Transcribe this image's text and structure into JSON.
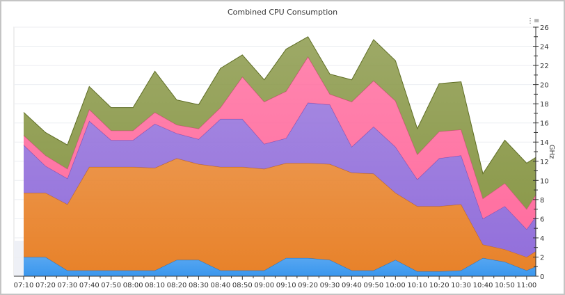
{
  "chart_data": {
    "type": "area",
    "stacked": true,
    "title": "Combined CPU Consumption",
    "ylabel": "GHz",
    "y_axis_side": "right",
    "ylim": [
      0,
      26
    ],
    "y_ticks": [
      0,
      2,
      4,
      6,
      8,
      10,
      12,
      14,
      16,
      18,
      20,
      22,
      24,
      26
    ],
    "grid": true,
    "legend": "none",
    "categories": [
      "07:10",
      "07:20",
      "07:30",
      "07:40",
      "07:50",
      "08:00",
      "08:10",
      "08:20",
      "08:30",
      "08:40",
      "08:50",
      "09:00",
      "09:10",
      "09:20",
      "09:30",
      "09:40",
      "09:50",
      "10:00",
      "10:10",
      "10:20",
      "10:30",
      "10:40",
      "10:50",
      "11:00",
      ""
    ],
    "series": [
      {
        "color": "#3a97ee",
        "line": "#1f6fc2",
        "values": [
          2,
          2,
          0.6,
          0.6,
          0.6,
          0.6,
          0.6,
          1.7,
          1.7,
          0.6,
          0.6,
          0.6,
          1.9,
          1.9,
          1.7,
          0.6,
          0.6,
          1.7,
          0.5,
          0.5,
          0.6,
          1.9,
          1.5,
          0.6,
          1.0
        ]
      },
      {
        "color": "#e8822a",
        "line": "#c0661a",
        "values": [
          6.7,
          6.7,
          6.9,
          10.8,
          10.8,
          10.8,
          10.7,
          10.6,
          10.0,
          10.8,
          10.8,
          10.6,
          9.9,
          9.9,
          10.0,
          10.2,
          10.1,
          7.0,
          6.8,
          6.8,
          6.9,
          1.4,
          1.3,
          1.4,
          1.6
        ]
      },
      {
        "color": "#9370db",
        "line": "#7050b8",
        "values": [
          5.0,
          2.8,
          2.7,
          4.8,
          2.8,
          2.8,
          4.6,
          2.6,
          2.6,
          5.0,
          5.0,
          2.6,
          2.6,
          6.3,
          6.2,
          2.7,
          4.9,
          4.8,
          2.8,
          5.0,
          5.1,
          2.7,
          4.5,
          2.9,
          3.6
        ]
      },
      {
        "color": "#ff6fa0",
        "line": "#d84a80",
        "values": [
          1.0,
          1.1,
          1.0,
          1.2,
          1.0,
          1.0,
          1.2,
          0.9,
          1.1,
          1.2,
          4.4,
          4.4,
          4.9,
          4.8,
          1.1,
          4.7,
          4.8,
          4.8,
          2.6,
          2.8,
          2.7,
          2.1,
          2.4,
          2.1,
          2.3
        ]
      },
      {
        "color": "#8c9a4c",
        "line": "#5f6e25",
        "values": [
          2.4,
          2.4,
          2.5,
          2.4,
          2.4,
          2.4,
          4.3,
          2.6,
          2.5,
          4.1,
          2.3,
          2.3,
          4.4,
          2.1,
          2.1,
          2.3,
          4.3,
          4.2,
          2.7,
          5.0,
          5.0,
          2.6,
          4.5,
          4.8,
          3.9
        ]
      }
    ]
  },
  "icons": {
    "menu": "chart-menu-icon"
  }
}
